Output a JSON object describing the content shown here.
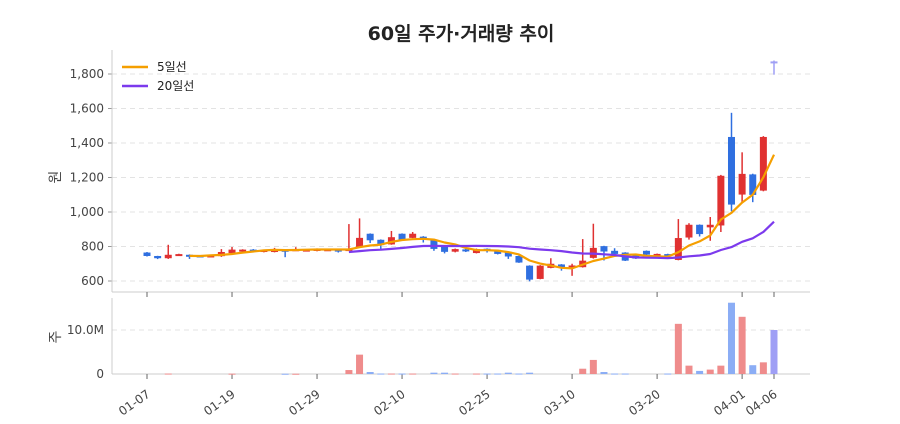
{
  "chart_data": {
    "type": "candlestick",
    "title": "60일 주가·거래량 추이",
    "price_axis": {
      "label": "원",
      "ticks": [
        600,
        800,
        1000,
        1200,
        1400,
        1600,
        1800
      ],
      "tick_labels": [
        "600",
        "800",
        "1,000",
        "1,200",
        "1,400",
        "1,600",
        "1,800"
      ],
      "range": [
        540,
        1900
      ]
    },
    "volume_axis": {
      "label": "주",
      "ticks": [
        0,
        10000000
      ],
      "tick_labels": [
        "0",
        "10.0M"
      ],
      "range": [
        0,
        17000000
      ]
    },
    "x_tick_labels": [
      "01-07",
      "01-19",
      "01-29",
      "02-10",
      "02-25",
      "03-10",
      "03-20",
      "04-01",
      "04-06"
    ],
    "grid": true,
    "legend": {
      "placement": "top-left",
      "items": [
        {
          "name": "5일선",
          "color": "#f59f00"
        },
        {
          "name": "20일선",
          "color": "#7c3aed"
        }
      ]
    },
    "colors": {
      "up": "#e03131",
      "down": "#2f6fe0",
      "up_volume": "#ef8c8c",
      "down_volume": "#8badf5",
      "latest": "#9f9ff5",
      "ma5": "#f59f00",
      "ma20": "#7c3aed"
    },
    "dates": [
      "01-07",
      "01-08",
      "01-09",
      "01-12",
      "01-13",
      "01-14",
      "01-15",
      "01-16",
      "01-19",
      "01-20",
      "01-21",
      "01-22",
      "01-23",
      "01-26",
      "01-27",
      "01-28",
      "01-29",
      "01-30",
      "02-02",
      "02-03",
      "02-04",
      "02-05",
      "02-06",
      "02-09",
      "02-10",
      "02-11",
      "02-12",
      "02-13",
      "02-19",
      "02-20",
      "02-23",
      "02-24",
      "02-25",
      "02-26",
      "02-27",
      "03-03",
      "03-04",
      "03-05",
      "03-06",
      "03-09",
      "03-10",
      "03-11",
      "03-12",
      "03-13",
      "03-16",
      "03-17",
      "03-18",
      "03-19",
      "03-20",
      "03-23",
      "03-24",
      "03-25",
      "03-26",
      "03-27",
      "03-30",
      "03-31",
      "04-01",
      "04-02",
      "04-03",
      "04-06"
    ],
    "ohlc": [
      [
        765,
        768,
        742,
        745
      ],
      [
        745,
        746,
        727,
        732
      ],
      [
        732,
        810,
        728,
        752
      ],
      [
        748,
        758,
        745,
        756
      ],
      [
        752,
        754,
        728,
        742
      ],
      [
        748,
        750,
        738,
        743
      ],
      [
        742,
        750,
        740,
        748
      ],
      [
        744,
        785,
        740,
        768
      ],
      [
        762,
        797,
        758,
        782
      ],
      [
        774,
        784,
        762,
        782
      ],
      [
        782,
        785,
        770,
        774
      ],
      [
        768,
        782,
        766,
        780
      ],
      [
        768,
        792,
        766,
        784
      ],
      [
        781,
        783,
        738,
        777
      ],
      [
        778,
        796,
        776,
        784
      ],
      [
        780,
        784,
        778,
        782
      ],
      [
        774,
        789,
        772,
        787
      ],
      [
        776,
        786,
        774,
        784
      ],
      [
        782,
        784,
        765,
        775
      ],
      [
        777,
        930,
        775,
        785
      ],
      [
        796,
        963,
        794,
        850
      ],
      [
        874,
        876,
        820,
        836
      ],
      [
        839,
        841,
        785,
        808
      ],
      [
        812,
        890,
        810,
        854
      ],
      [
        874,
        876,
        836,
        839
      ],
      [
        850,
        884,
        848,
        874
      ],
      [
        857,
        860,
        823,
        848
      ],
      [
        835,
        838,
        775,
        786
      ],
      [
        804,
        806,
        760,
        769
      ],
      [
        770,
        788,
        766,
        785
      ],
      [
        783,
        786,
        768,
        772
      ],
      [
        762,
        788,
        760,
        785
      ],
      [
        787,
        789,
        765,
        781
      ],
      [
        780,
        782,
        754,
        757
      ],
      [
        769,
        771,
        728,
        742
      ],
      [
        745,
        747,
        705,
        707
      ],
      [
        689,
        691,
        598,
        608
      ],
      [
        612,
        692,
        610,
        689
      ],
      [
        676,
        732,
        674,
        700
      ],
      [
        696,
        698,
        660,
        679
      ],
      [
        680,
        700,
        630,
        690
      ],
      [
        680,
        843,
        678,
        718
      ],
      [
        734,
        932,
        730,
        792
      ],
      [
        802,
        804,
        719,
        771
      ],
      [
        775,
        790,
        755,
        757
      ],
      [
        765,
        767,
        716,
        718
      ],
      [
        755,
        757,
        728,
        730
      ],
      [
        775,
        777,
        750,
        753
      ],
      [
        745,
        759,
        743,
        757
      ],
      [
        756,
        758,
        742,
        745
      ],
      [
        722,
        959,
        720,
        849
      ],
      [
        852,
        935,
        840,
        926
      ],
      [
        926,
        928,
        858,
        872
      ],
      [
        911,
        971,
        833,
        926
      ],
      [
        922,
        1215,
        884,
        1210
      ],
      [
        1435,
        1575,
        1004,
        1043
      ],
      [
        1101,
        1346,
        1058,
        1221
      ],
      [
        1218,
        1222,
        1057,
        1099
      ],
      [
        1124,
        1440,
        1120,
        1435
      ],
      [
        1873,
        1878,
        1796,
        1862
      ]
    ],
    "volume": [
      0,
      0,
      100000,
      0,
      0,
      0,
      0,
      0,
      80000,
      0,
      0,
      0,
      0,
      60000,
      60000,
      0,
      0,
      0,
      0,
      900000,
      4400000,
      450000,
      100000,
      100000,
      100000,
      100000,
      0,
      300000,
      300000,
      100000,
      0,
      100000,
      100000,
      100000,
      300000,
      100000,
      300000,
      0,
      0,
      0,
      0,
      1200000,
      3200000,
      450000,
      100000,
      100000,
      0,
      0,
      0,
      100000,
      11400000,
      1900000,
      700000,
      1000000,
      1900000,
      16200000,
      13000000,
      2000000,
      2650000,
      10000000
    ],
    "ma_periods": [
      5,
      20
    ]
  }
}
